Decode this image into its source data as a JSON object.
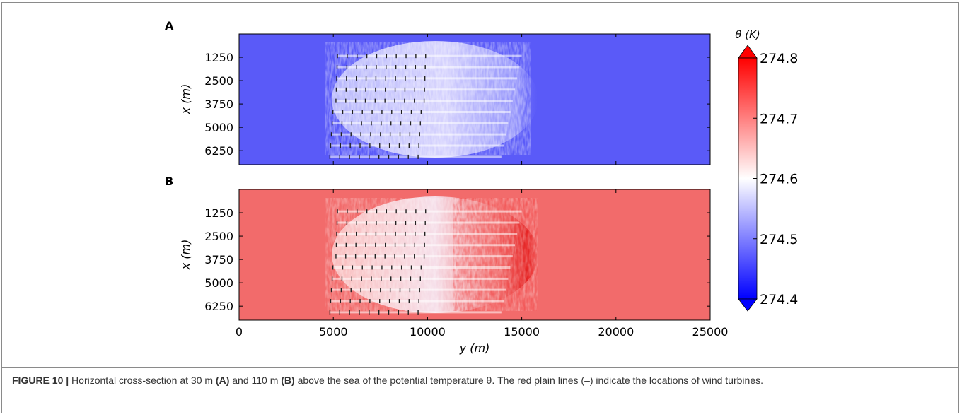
{
  "chart_data": [
    {
      "type": "heatmap",
      "panel_label": "A",
      "xlabel": "y (m)",
      "ylabel": "x (m)",
      "ytick_labels": [
        "1250",
        "2500",
        "3750",
        "5000",
        "6250"
      ],
      "ytick_values": [
        1250,
        2500,
        3750,
        5000,
        6250
      ],
      "xlim": [
        0,
        25000
      ],
      "ylim": [
        0,
        7000
      ],
      "field": "potential temperature θ",
      "height_m": 30,
      "background_value": 274.42,
      "wake_value_range": [
        274.55,
        274.75
      ],
      "wind_farm_y_range": [
        4800,
        15000
      ],
      "turbine_rows": 10,
      "turbine_row_x": [
        1180,
        1780,
        2380,
        2980,
        3580,
        4180,
        4780,
        5380,
        5980,
        6580
      ]
    },
    {
      "type": "heatmap",
      "panel_label": "B",
      "xlabel": "y (m)",
      "ylabel": "x (m)",
      "ytick_labels": [
        "1250",
        "2500",
        "3750",
        "5000",
        "6250"
      ],
      "ytick_values": [
        1250,
        2500,
        3750,
        5000,
        6250
      ],
      "xtick_labels": [
        "0",
        "5000",
        "10000",
        "15000",
        "20000",
        "25000"
      ],
      "xtick_values": [
        0,
        5000,
        10000,
        15000,
        20000,
        25000
      ],
      "xlim": [
        0,
        25000
      ],
      "ylim": [
        0,
        7000
      ],
      "field": "potential temperature θ",
      "height_m": 110,
      "background_value": 274.72,
      "wake_value_range": [
        274.55,
        274.78
      ],
      "wind_farm_y_range": [
        4800,
        15000
      ],
      "turbine_rows": 10,
      "turbine_row_x": [
        1180,
        1780,
        2380,
        2980,
        3580,
        4180,
        4780,
        5380,
        5980,
        6580
      ]
    }
  ],
  "colorbar": {
    "title": "θ (K)",
    "min": 274.4,
    "max": 274.8,
    "tick_labels": [
      "274.8",
      "274.7",
      "274.6",
      "274.5",
      "274.4"
    ],
    "tick_values": [
      274.8,
      274.7,
      274.6,
      274.5,
      274.4
    ],
    "colormap": "bwr",
    "extend": "both",
    "colors": {
      "low": "#0000ff",
      "mid": "#ffffff",
      "high": "#ff0000"
    }
  },
  "caption": {
    "figure_label": "FIGURE 10 |",
    "text_1": " Horizontal cross-section at 30 m ",
    "label_a": "(A)",
    "text_2": " and 110 m ",
    "label_b": "(B)",
    "text_3": " above the sea of the potential temperature θ. The red plain lines (–) indicate the locations of wind turbines."
  }
}
